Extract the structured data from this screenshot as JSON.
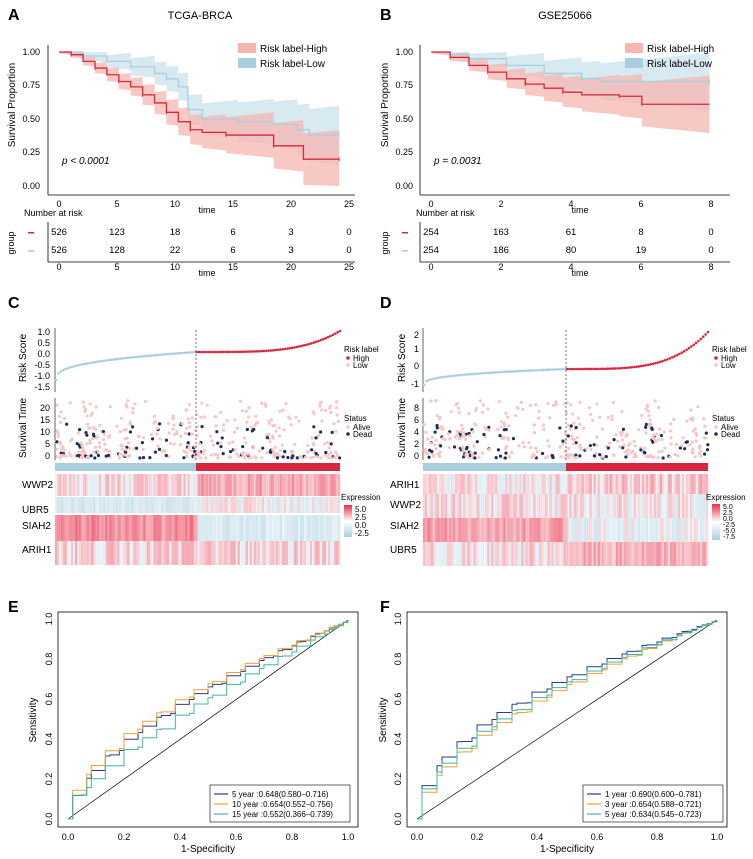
{
  "colors": {
    "high": "#d7263d",
    "high_fill": "#f6b5b0",
    "low": "#a9cfdf",
    "low_fill": "#c9e1ec",
    "dead": "#1f2f5a",
    "alive": "#f7c6c6",
    "navy": "#2b3a8f",
    "orange": "#f0a030",
    "teal": "#3fb8a8"
  },
  "panels": {
    "A": {
      "letter": "A",
      "title": "TCGA-BRCA",
      "pvalue": "p < 0.0001",
      "ylabel": "Survival Proportion",
      "xlabel": "time",
      "legend": [
        "Risk label-High",
        "Risk label-Low"
      ],
      "yticks": [
        "1.00",
        "0.75",
        "0.50",
        "0.25",
        "0.00"
      ],
      "xticks": [
        "0",
        "5",
        "10",
        "15",
        "20",
        "25"
      ],
      "risk_title": "Number at risk",
      "group_label": "group",
      "risk_high": [
        "526",
        "123",
        "18",
        "6",
        "3",
        "0"
      ],
      "risk_low": [
        "526",
        "128",
        "22",
        "6",
        "3",
        "0"
      ],
      "high_curve": [
        [
          0,
          1.0
        ],
        [
          1,
          0.98
        ],
        [
          2,
          0.93
        ],
        [
          3,
          0.88
        ],
        [
          4,
          0.83
        ],
        [
          5,
          0.78
        ],
        [
          6,
          0.74
        ],
        [
          7,
          0.68
        ],
        [
          8,
          0.62
        ],
        [
          9,
          0.55
        ],
        [
          10,
          0.48
        ],
        [
          11,
          0.42
        ],
        [
          12,
          0.4
        ],
        [
          14,
          0.38
        ],
        [
          17,
          0.38
        ],
        [
          18,
          0.3
        ],
        [
          20.5,
          0.2
        ],
        [
          23.5,
          0.2
        ]
      ],
      "low_curve": [
        [
          0,
          1.0
        ],
        [
          2,
          0.97
        ],
        [
          4,
          0.93
        ],
        [
          6,
          0.89
        ],
        [
          8,
          0.84
        ],
        [
          9,
          0.8
        ],
        [
          10,
          0.74
        ],
        [
          10.8,
          0.57
        ],
        [
          12,
          0.5
        ],
        [
          15,
          0.48
        ],
        [
          18,
          0.46
        ],
        [
          20,
          0.42
        ],
        [
          21,
          0.38
        ],
        [
          23.5,
          0.38
        ]
      ],
      "xmax": 25
    },
    "B": {
      "letter": "B",
      "title": "GSE25066",
      "pvalue": "p = 0.0031",
      "ylabel": "Survival Proportion",
      "xlabel": "time",
      "legend": [
        "Risk label-High",
        "Risk label-Low"
      ],
      "yticks": [
        "1.00",
        "0.75",
        "0.50",
        "0.25",
        "0.00"
      ],
      "xticks": [
        "0",
        "2",
        "4",
        "6",
        "8"
      ],
      "risk_title": "Number at risk",
      "group_label": "group",
      "risk_high": [
        "254",
        "163",
        "61",
        "8",
        "0"
      ],
      "risk_low": [
        "254",
        "186",
        "80",
        "19",
        "0"
      ],
      "high_curve": [
        [
          0,
          1.0
        ],
        [
          0.5,
          0.96
        ],
        [
          1,
          0.9
        ],
        [
          1.5,
          0.85
        ],
        [
          2,
          0.8
        ],
        [
          2.5,
          0.76
        ],
        [
          3,
          0.73
        ],
        [
          3.5,
          0.7
        ],
        [
          4,
          0.68
        ],
        [
          5,
          0.67
        ],
        [
          5.5,
          0.67
        ],
        [
          5.6,
          0.61
        ],
        [
          7.4,
          0.61
        ]
      ],
      "low_curve": [
        [
          0,
          1.0
        ],
        [
          0.5,
          0.98
        ],
        [
          1,
          0.95
        ],
        [
          2,
          0.9
        ],
        [
          3,
          0.84
        ],
        [
          4,
          0.8
        ],
        [
          4.5,
          0.78
        ],
        [
          7.4,
          0.78
        ]
      ],
      "xmax": 8
    },
    "C": {
      "letter": "C",
      "risk_axis": "Risk Score",
      "time_axis": "Survival Time",
      "risk_ticks": [
        "1.0",
        "0.5",
        "0.0",
        "-0.5",
        "-1.0",
        "-1.5"
      ],
      "time_ticks": [
        "20",
        "15",
        "10",
        "5",
        "0"
      ],
      "legend_risk": {
        "title": "Risk label",
        "items": [
          "High",
          "Low"
        ]
      },
      "legend_status": {
        "title": "Status",
        "items": [
          "Alive",
          "Dead"
        ]
      },
      "legend_expr": {
        "title": "Expression",
        "items": [
          "5.0",
          "2.5",
          "0.0",
          "-2.5"
        ]
      },
      "genes": [
        "WWP2",
        "UBR5",
        "SIAH2",
        "ARIH1"
      ]
    },
    "D": {
      "letter": "D",
      "risk_axis": "Risk Score",
      "time_axis": "Survival Time",
      "risk_ticks": [
        "2",
        "1",
        "0",
        "-1"
      ],
      "time_ticks": [
        "8",
        "6",
        "4",
        "2",
        "0"
      ],
      "legend_risk": {
        "title": "Risk label",
        "items": [
          "High",
          "Low"
        ]
      },
      "legend_status": {
        "title": "Status",
        "items": [
          "Alive",
          "Dead"
        ]
      },
      "legend_expr": {
        "title": "Expression",
        "items": [
          "5.0",
          "2.5",
          "0.0",
          "-2.5",
          "-5.0",
          "-7.5"
        ]
      },
      "genes": [
        "ARIH1",
        "WWP2",
        "SIAH2",
        "UBR5"
      ]
    },
    "E": {
      "letter": "E",
      "ylabel": "Sensitivity",
      "xlabel": "1-Specificity",
      "ticks": [
        "0.0",
        "0.2",
        "0.4",
        "0.6",
        "0.8",
        "1.0"
      ],
      "legend": [
        "5 year :0.648(0.580–0.716)",
        "10 year :0.654(0.552–0.756)",
        "15 year :0.552(0.366–0.739)"
      ]
    },
    "F": {
      "letter": "F",
      "ylabel": "Sensitivity",
      "xlabel": "1-Specificity",
      "ticks": [
        "0.0",
        "0.2",
        "0.4",
        "0.6",
        "0.8",
        "1.0"
      ],
      "legend": [
        "1 year :0.690(0.600–0.781)",
        "3 year :0.654(0.588–0.721)",
        "5 year :0.634(0.545–0.723)"
      ]
    }
  }
}
